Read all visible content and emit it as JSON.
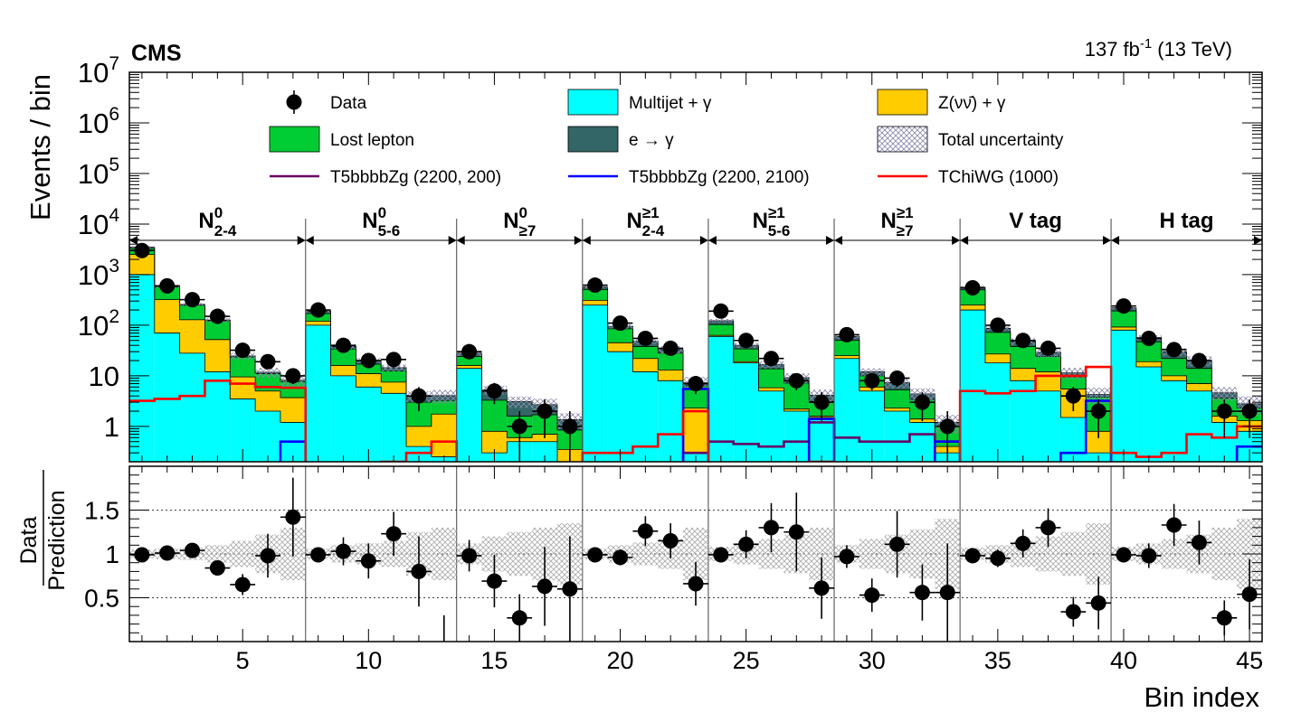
{
  "header": {
    "experiment": "CMS",
    "lumi_value": "137 fb",
    "lumi_exp": "-1",
    "lumi_energy": "(13 TeV)"
  },
  "chart_data": {
    "type": "bar",
    "subtype": "stacked-histogram-with-ratio",
    "xlabel": "Bin index",
    "ylabel_top": "Events / bin",
    "ylabel_ratio_num": "Data",
    "ylabel_ratio_den": "Prediction",
    "xlim": [
      0.5,
      45.5
    ],
    "ylim_top": [
      0.2,
      10000000
    ],
    "ylim_ratio": [
      0,
      2
    ],
    "log_y": true,
    "x_ticks": [
      5,
      10,
      15,
      20,
      25,
      30,
      35,
      40,
      45
    ],
    "y_ticks_top": [
      {
        "v": 1,
        "label": "1"
      },
      {
        "v": 10,
        "label": "10"
      },
      {
        "v": 100,
        "base": "10",
        "exp": "2"
      },
      {
        "v": 1000,
        "base": "10",
        "exp": "3"
      },
      {
        "v": 10000,
        "base": "10",
        "exp": "4"
      },
      {
        "v": 100000,
        "base": "10",
        "exp": "5"
      },
      {
        "v": 1000000,
        "base": "10",
        "exp": "6"
      },
      {
        "v": 10000000,
        "base": "10",
        "exp": "7"
      }
    ],
    "y_ticks_ratio": [
      {
        "v": 0.5,
        "label": "0.5"
      },
      {
        "v": 1,
        "label": "1"
      },
      {
        "v": 1.5,
        "label": "1.5"
      }
    ],
    "regions": [
      {
        "label": "N",
        "sup": "0",
        "sub": "2-4",
        "bins": [
          1,
          7
        ]
      },
      {
        "label": "N",
        "sup": "0",
        "sub": "5-6",
        "bins": [
          8,
          13
        ]
      },
      {
        "label": "N",
        "sup": "0",
        "sub": "≥7",
        "bins": [
          14,
          18
        ]
      },
      {
        "label": "N",
        "sup": "≥1",
        "sub": "2-4",
        "bins": [
          19,
          23
        ]
      },
      {
        "label": "N",
        "sup": "≥1",
        "sub": "5-6",
        "bins": [
          24,
          28
        ]
      },
      {
        "label": "N",
        "sup": "≥1",
        "sub": "≥7",
        "bins": [
          29,
          33
        ]
      },
      {
        "label": "V tag",
        "bins": [
          34,
          39
        ]
      },
      {
        "label": "H tag",
        "bins": [
          40,
          45
        ]
      }
    ],
    "legend": [
      {
        "key": "data",
        "label": "Data",
        "kind": "marker"
      },
      {
        "key": "multijet",
        "label": "Multijet + γ",
        "kind": "fill"
      },
      {
        "key": "znn",
        "label": "Z(νν̄) + γ",
        "kind": "fill"
      },
      {
        "key": "lostlep",
        "label": "Lost lepton",
        "kind": "fill"
      },
      {
        "key": "efake",
        "label": "e → γ",
        "kind": "fill"
      },
      {
        "key": "unc",
        "label": "Total uncertainty",
        "kind": "hatch"
      },
      {
        "key": "sig1",
        "label": "T5bbbbZg (2200, 200)",
        "kind": "line"
      },
      {
        "key": "sig2",
        "label": "T5bbbbZg (2200, 2100)",
        "kind": "line"
      },
      {
        "key": "sig3",
        "label": "TChiWG (1000)",
        "kind": "line"
      }
    ],
    "colors": {
      "multijet": "#00ffff",
      "znn": "#ffcc00",
      "lostlep": "#00cc33",
      "efake": "#336666",
      "sig1": "#660066",
      "sig2": "#0000ff",
      "sig3": "#ff0000",
      "data": "#000000",
      "hatch": "#9999bb"
    },
    "bins": [
      1,
      2,
      3,
      4,
      5,
      6,
      7,
      8,
      9,
      10,
      11,
      12,
      13,
      14,
      15,
      16,
      17,
      18,
      19,
      20,
      21,
      22,
      23,
      24,
      25,
      26,
      27,
      28,
      29,
      30,
      31,
      32,
      33,
      34,
      35,
      36,
      37,
      38,
      39,
      40,
      41,
      42,
      43,
      44,
      45
    ],
    "series": [
      {
        "name": "Multijet + γ",
        "key": "multijet",
        "values": [
          1000,
          70,
          28,
          12,
          3.5,
          2.0,
          1.2,
          100,
          10,
          6,
          4.5,
          0.4,
          0.25,
          14,
          0.3,
          0.5,
          0.5,
          0.15,
          250,
          30,
          12,
          8,
          0.3,
          60,
          18,
          5,
          2,
          1.5,
          22,
          5,
          2,
          1.2,
          0.3,
          200,
          18,
          8,
          5,
          1.5,
          0.3,
          80,
          15,
          8,
          5,
          1.2,
          0.8
        ]
      },
      {
        "name": "Z(νν̄) + γ",
        "key": "znn",
        "values": [
          1500,
          250,
          100,
          40,
          6,
          3.0,
          2.5,
          20,
          6,
          5,
          3,
          0.6,
          1.5,
          2,
          0.5,
          0.1,
          0.2,
          0.2,
          60,
          15,
          10,
          5,
          2,
          3,
          1,
          0.8,
          0.2,
          0.1,
          3,
          1,
          0.3,
          0.2,
          0.1,
          50,
          9,
          6,
          7,
          4,
          0.5,
          12,
          4,
          2,
          2,
          0.4,
          0.5
        ]
      },
      {
        "name": "Lost lepton",
        "key": "lostlep",
        "values": [
          800,
          250,
          120,
          70,
          14,
          6,
          4,
          50,
          18,
          6,
          5,
          2,
          1.5,
          8,
          2.5,
          1.0,
          1.0,
          0.5,
          200,
          40,
          16,
          15,
          4,
          40,
          15,
          8,
          5,
          1.5,
          25,
          4,
          3,
          2,
          0.6,
          250,
          45,
          24,
          12,
          4,
          3,
          100,
          28,
          12,
          7,
          2,
          1.0
        ]
      },
      {
        "name": "e → γ",
        "key": "efake",
        "values": [
          200,
          20,
          10,
          5,
          1.2,
          0.8,
          0.5,
          20,
          4,
          3,
          2,
          1,
          0.8,
          4,
          2,
          1.5,
          1,
          0.5,
          60,
          10,
          10,
          5,
          1,
          20,
          6,
          3,
          2,
          1,
          10,
          2,
          2,
          1,
          0.2,
          60,
          15,
          10,
          5,
          2,
          0.5,
          30,
          10,
          8,
          6,
          1,
          0.5
        ]
      }
    ],
    "uncertainty_band_rel": [
      0.05,
      0.06,
      0.07,
      0.1,
      0.15,
      0.22,
      0.3,
      0.06,
      0.1,
      0.12,
      0.15,
      0.25,
      0.3,
      0.12,
      0.2,
      0.25,
      0.3,
      0.35,
      0.06,
      0.1,
      0.13,
      0.17,
      0.3,
      0.08,
      0.12,
      0.17,
      0.22,
      0.3,
      0.1,
      0.17,
      0.22,
      0.28,
      0.4,
      0.07,
      0.1,
      0.15,
      0.2,
      0.25,
      0.35,
      0.08,
      0.12,
      0.17,
      0.22,
      0.3,
      0.4
    ],
    "data": {
      "values": [
        3000,
        600,
        320,
        150,
        32,
        19,
        10,
        200,
        40,
        20,
        21,
        4,
        0,
        30,
        5,
        1,
        2,
        1,
        620,
        110,
        55,
        35,
        7,
        190,
        50,
        22,
        8,
        3,
        65,
        8,
        9,
        3,
        1,
        550,
        100,
        50,
        35,
        4,
        2,
        240,
        55,
        33,
        20,
        2,
        2
      ],
      "ratio": [
        0.99,
        1.01,
        1.04,
        0.84,
        0.65,
        0.98,
        1.42,
        0.99,
        1.03,
        0.92,
        1.23,
        0.8,
        null,
        0.98,
        0.69,
        0.27,
        0.63,
        0.6,
        0.99,
        0.96,
        1.26,
        1.15,
        0.66,
        0.99,
        1.11,
        1.3,
        1.25,
        0.61,
        0.97,
        0.53,
        1.11,
        0.56,
        0.56,
        0.98,
        0.95,
        1.12,
        1.3,
        0.34,
        0.44,
        0.99,
        0.98,
        1.33,
        1.13,
        0.27,
        0.54
      ],
      "ratio_err": [
        0.03,
        0.05,
        0.06,
        0.07,
        0.12,
        0.25,
        0.45,
        0.07,
        0.16,
        0.2,
        0.25,
        0.4,
        0.3,
        0.18,
        0.3,
        0.27,
        0.45,
        0.6,
        0.04,
        0.09,
        0.17,
        0.2,
        0.25,
        0.08,
        0.16,
        0.28,
        0.45,
        0.35,
        0.13,
        0.19,
        0.38,
        0.32,
        0.56,
        0.05,
        0.1,
        0.16,
        0.22,
        0.17,
        0.3,
        0.07,
        0.14,
        0.24,
        0.25,
        0.2,
        0.4
      ]
    },
    "signals": [
      {
        "name": "T5bbbbZg (2200, 200)",
        "key": "sig1",
        "values": [
          0.01,
          0.01,
          0.01,
          0.01,
          0.01,
          0.01,
          0.01,
          0.01,
          0.01,
          0.01,
          0.01,
          0.01,
          0.01,
          0.01,
          0.01,
          0.01,
          0.01,
          0.01,
          0.01,
          0.01,
          0.01,
          0.01,
          0.3,
          0.5,
          0.45,
          0.4,
          0.5,
          1.2,
          0.6,
          0.5,
          0.5,
          0.7,
          0.5,
          0.01,
          0.01,
          0.01,
          0.01,
          0.01,
          0.01,
          0.01,
          0.01,
          0.01,
          0.01,
          0.01,
          0.01
        ]
      },
      {
        "name": "T5bbbbZg (2200, 2100)",
        "key": "sig2",
        "values": [
          0.01,
          0.01,
          0.01,
          0.01,
          0.01,
          0.01,
          0.5,
          0.01,
          0.01,
          0.01,
          0.01,
          0.01,
          0.01,
          0.01,
          0.01,
          0.01,
          0.01,
          0.01,
          0.01,
          0.01,
          0.01,
          0.01,
          5.5,
          0.01,
          0.01,
          0.01,
          0.01,
          1.4,
          0.01,
          0.01,
          0.01,
          0.01,
          0.5,
          0.01,
          0.01,
          0.01,
          0.01,
          0.3,
          3.2,
          0.01,
          0.01,
          0.01,
          0.01,
          0.01,
          0.4
        ]
      },
      {
        "name": "TChiWG (1000)",
        "key": "sig3",
        "values": [
          3.2,
          3.5,
          4,
          8,
          7,
          6,
          5.8,
          0.01,
          0.01,
          0.15,
          0.2,
          0.3,
          0.5,
          0.01,
          0.01,
          0.01,
          0.01,
          0.01,
          0.3,
          0.3,
          0.4,
          0.7,
          2,
          0.01,
          0.01,
          0.01,
          0.01,
          0.2,
          0.01,
          0.01,
          0.01,
          0.01,
          0.01,
          5,
          4.5,
          5,
          10,
          10,
          15,
          0.3,
          0.25,
          0.3,
          0.7,
          0.6,
          1.0
        ]
      }
    ]
  }
}
